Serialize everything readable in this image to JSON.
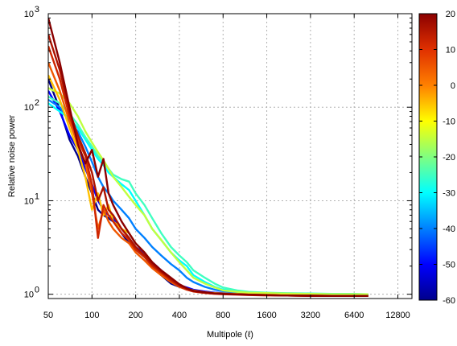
{
  "chart_data": {
    "type": "line",
    "title": "",
    "xlabel": "Multipole (ℓ)",
    "ylabel": "Relative noise power",
    "x_scale": "log2",
    "y_scale": "log10",
    "xlim": [
      50,
      16000
    ],
    "ylim": [
      0.9,
      1000
    ],
    "grid": true,
    "x_ticks": [
      50,
      100,
      200,
      400,
      800,
      1600,
      3200,
      6400,
      12800
    ],
    "x_tick_labels": [
      "50",
      "100",
      "200",
      "400",
      "800",
      "1600",
      "3200",
      "6400",
      "12800"
    ],
    "y_ticks": [
      1,
      10,
      100,
      1000
    ],
    "y_tick_labels": [
      [
        "10",
        "0"
      ],
      [
        "10",
        "1"
      ],
      [
        "10",
        "2"
      ],
      [
        "10",
        "3"
      ]
    ],
    "colorbar": {
      "min": -60,
      "max": 20,
      "ticks": [
        20,
        10,
        0,
        -10,
        -20,
        -30,
        -40,
        -50,
        -60
      ],
      "colormap": [
        "#00008b",
        "#0000ff",
        "#0080ff",
        "#00ffff",
        "#80ff80",
        "#ffff00",
        "#ff8000",
        "#e03000",
        "#8b0000"
      ]
    },
    "x_sample_points": [
      50,
      60,
      70,
      80,
      90,
      100,
      110,
      120,
      130,
      140,
      160,
      180,
      200,
      230,
      260,
      300,
      350,
      400,
      450,
      500,
      600,
      700,
      800,
      1000,
      1200,
      1600,
      2000,
      3200,
      4500,
      6400,
      8000
    ],
    "series": [
      {
        "colorval": -60,
        "values": [
          200,
          95,
          45,
          30,
          18,
          12,
          8,
          7,
          6.5,
          6,
          4.5,
          3.5,
          3,
          2.5,
          2,
          1.6,
          1.3,
          1.2,
          1.15,
          1.1,
          1.05,
          1.03,
          1.02,
          1.01,
          1.0,
          1.0,
          1.0,
          0.98,
          0.97,
          0.97,
          0.97
        ]
      },
      {
        "colorval": -50,
        "values": [
          150,
          90,
          50,
          35,
          22,
          15,
          10,
          8,
          7,
          6.5,
          5,
          4,
          3.2,
          2.7,
          2.2,
          1.8,
          1.4,
          1.25,
          1.18,
          1.12,
          1.07,
          1.04,
          1.03,
          1.02,
          1.01,
          1.0,
          1.0,
          0.99,
          0.98,
          0.98,
          0.98
        ]
      },
      {
        "colorval": -40,
        "values": [
          120,
          100,
          70,
          55,
          38,
          26,
          18,
          14,
          12,
          10,
          8,
          6.5,
          5,
          4,
          3.2,
          2.6,
          2.1,
          1.8,
          1.5,
          1.35,
          1.2,
          1.12,
          1.08,
          1.05,
          1.03,
          1.02,
          1.01,
          1.0,
          0.99,
          0.99,
          0.99
        ]
      },
      {
        "colorval": -30,
        "values": [
          110,
          90,
          75,
          60,
          45,
          35,
          28,
          24,
          20,
          18,
          15,
          13,
          10,
          7,
          5,
          3.8,
          2.8,
          2.3,
          2.0,
          1.6,
          1.35,
          1.2,
          1.12,
          1.08,
          1.05,
          1.03,
          1.02,
          1.01,
          1.0,
          1.0,
          1.0
        ]
      },
      {
        "colorval": -25,
        "values": [
          130,
          110,
          85,
          65,
          48,
          38,
          30,
          26,
          22,
          19,
          17,
          16,
          12,
          9,
          6.5,
          4.5,
          3.2,
          2.6,
          2.2,
          1.8,
          1.5,
          1.3,
          1.18,
          1.1,
          1.06,
          1.04,
          1.03,
          1.02,
          1.01,
          1.01,
          1.0
        ]
      },
      {
        "colorval": -15,
        "values": [
          160,
          140,
          110,
          80,
          55,
          42,
          33,
          27,
          22,
          18,
          14,
          11,
          9,
          7,
          5,
          3.8,
          2.8,
          2.2,
          1.8,
          1.5,
          1.3,
          1.18,
          1.1,
          1.06,
          1.04,
          1.03,
          1.02,
          1.01,
          1.0,
          1.0,
          1.0
        ]
      },
      {
        "colorval": -5,
        "values": [
          220,
          120,
          60,
          35,
          18,
          8,
          12,
          7,
          9,
          6,
          5,
          4.5,
          3.5,
          2.8,
          2.2,
          1.7,
          1.4,
          1.25,
          1.15,
          1.1,
          1.05,
          1.03,
          1.02,
          1.01,
          1.0,
          0.99,
          0.98,
          0.97,
          0.96,
          0.96,
          0.96
        ]
      },
      {
        "colorval": 5,
        "values": [
          300,
          150,
          70,
          40,
          25,
          12,
          5,
          8,
          6,
          5,
          4,
          3.5,
          2.8,
          2.3,
          1.9,
          1.6,
          1.35,
          1.2,
          1.12,
          1.08,
          1.04,
          1.02,
          1.01,
          1.0,
          0.99,
          0.98,
          0.97,
          0.96,
          0.96,
          0.96,
          0.96
        ]
      },
      {
        "colorval": 12,
        "values": [
          450,
          200,
          80,
          45,
          30,
          15,
          4,
          9,
          7,
          6,
          4.5,
          3.8,
          3,
          2.5,
          2,
          1.7,
          1.4,
          1.22,
          1.12,
          1.07,
          1.03,
          1.01,
          1.0,
          0.99,
          0.98,
          0.97,
          0.97,
          0.96,
          0.96,
          0.96,
          0.96
        ]
      },
      {
        "colorval": 16,
        "values": [
          600,
          250,
          90,
          50,
          32,
          20,
          10,
          14,
          8,
          7,
          5,
          4,
          3.2,
          2.6,
          2.1,
          1.75,
          1.45,
          1.25,
          1.15,
          1.08,
          1.04,
          1.02,
          1.01,
          1.0,
          0.99,
          0.98,
          0.97,
          0.97,
          0.96,
          0.96,
          0.96
        ]
      },
      {
        "colorval": 20,
        "values": [
          900,
          300,
          100,
          40,
          25,
          35,
          18,
          28,
          12,
          9,
          6,
          4.5,
          3.5,
          2.8,
          2.2,
          1.8,
          1.5,
          1.28,
          1.16,
          1.09,
          1.05,
          1.02,
          1.01,
          1.0,
          0.99,
          0.98,
          0.97,
          0.96,
          0.96,
          0.96,
          0.96
        ]
      }
    ]
  }
}
